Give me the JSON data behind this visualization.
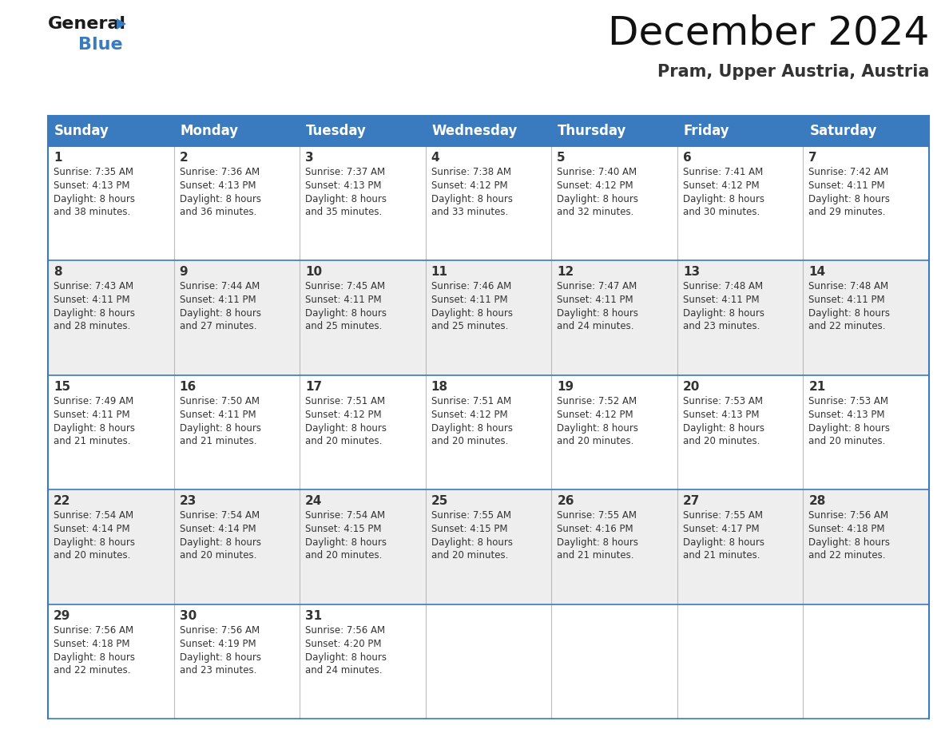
{
  "title": "December 2024",
  "subtitle": "Pram, Upper Austria, Austria",
  "header_color": "#3a7abf",
  "header_text_color": "#ffffff",
  "border_color": "#3a7abf",
  "row_sep_color": "#3a7abf",
  "col_sep_color": "#cccccc",
  "day_headers": [
    "Sunday",
    "Monday",
    "Tuesday",
    "Wednesday",
    "Thursday",
    "Friday",
    "Saturday"
  ],
  "days": [
    {
      "day": 1,
      "col": 0,
      "row": 0,
      "sunrise": "7:35 AM",
      "sunset": "4:13 PM",
      "daylight": "8 hours and 38 minutes."
    },
    {
      "day": 2,
      "col": 1,
      "row": 0,
      "sunrise": "7:36 AM",
      "sunset": "4:13 PM",
      "daylight": "8 hours and 36 minutes."
    },
    {
      "day": 3,
      "col": 2,
      "row": 0,
      "sunrise": "7:37 AM",
      "sunset": "4:13 PM",
      "daylight": "8 hours and 35 minutes."
    },
    {
      "day": 4,
      "col": 3,
      "row": 0,
      "sunrise": "7:38 AM",
      "sunset": "4:12 PM",
      "daylight": "8 hours and 33 minutes."
    },
    {
      "day": 5,
      "col": 4,
      "row": 0,
      "sunrise": "7:40 AM",
      "sunset": "4:12 PM",
      "daylight": "8 hours and 32 minutes."
    },
    {
      "day": 6,
      "col": 5,
      "row": 0,
      "sunrise": "7:41 AM",
      "sunset": "4:12 PM",
      "daylight": "8 hours and 30 minutes."
    },
    {
      "day": 7,
      "col": 6,
      "row": 0,
      "sunrise": "7:42 AM",
      "sunset": "4:11 PM",
      "daylight": "8 hours and 29 minutes."
    },
    {
      "day": 8,
      "col": 0,
      "row": 1,
      "sunrise": "7:43 AM",
      "sunset": "4:11 PM",
      "daylight": "8 hours and 28 minutes."
    },
    {
      "day": 9,
      "col": 1,
      "row": 1,
      "sunrise": "7:44 AM",
      "sunset": "4:11 PM",
      "daylight": "8 hours and 27 minutes."
    },
    {
      "day": 10,
      "col": 2,
      "row": 1,
      "sunrise": "7:45 AM",
      "sunset": "4:11 PM",
      "daylight": "8 hours and 25 minutes."
    },
    {
      "day": 11,
      "col": 3,
      "row": 1,
      "sunrise": "7:46 AM",
      "sunset": "4:11 PM",
      "daylight": "8 hours and 25 minutes."
    },
    {
      "day": 12,
      "col": 4,
      "row": 1,
      "sunrise": "7:47 AM",
      "sunset": "4:11 PM",
      "daylight": "8 hours and 24 minutes."
    },
    {
      "day": 13,
      "col": 5,
      "row": 1,
      "sunrise": "7:48 AM",
      "sunset": "4:11 PM",
      "daylight": "8 hours and 23 minutes."
    },
    {
      "day": 14,
      "col": 6,
      "row": 1,
      "sunrise": "7:48 AM",
      "sunset": "4:11 PM",
      "daylight": "8 hours and 22 minutes."
    },
    {
      "day": 15,
      "col": 0,
      "row": 2,
      "sunrise": "7:49 AM",
      "sunset": "4:11 PM",
      "daylight": "8 hours and 21 minutes."
    },
    {
      "day": 16,
      "col": 1,
      "row": 2,
      "sunrise": "7:50 AM",
      "sunset": "4:11 PM",
      "daylight": "8 hours and 21 minutes."
    },
    {
      "day": 17,
      "col": 2,
      "row": 2,
      "sunrise": "7:51 AM",
      "sunset": "4:12 PM",
      "daylight": "8 hours and 20 minutes."
    },
    {
      "day": 18,
      "col": 3,
      "row": 2,
      "sunrise": "7:51 AM",
      "sunset": "4:12 PM",
      "daylight": "8 hours and 20 minutes."
    },
    {
      "day": 19,
      "col": 4,
      "row": 2,
      "sunrise": "7:52 AM",
      "sunset": "4:12 PM",
      "daylight": "8 hours and 20 minutes."
    },
    {
      "day": 20,
      "col": 5,
      "row": 2,
      "sunrise": "7:53 AM",
      "sunset": "4:13 PM",
      "daylight": "8 hours and 20 minutes."
    },
    {
      "day": 21,
      "col": 6,
      "row": 2,
      "sunrise": "7:53 AM",
      "sunset": "4:13 PM",
      "daylight": "8 hours and 20 minutes."
    },
    {
      "day": 22,
      "col": 0,
      "row": 3,
      "sunrise": "7:54 AM",
      "sunset": "4:14 PM",
      "daylight": "8 hours and 20 minutes."
    },
    {
      "day": 23,
      "col": 1,
      "row": 3,
      "sunrise": "7:54 AM",
      "sunset": "4:14 PM",
      "daylight": "8 hours and 20 minutes."
    },
    {
      "day": 24,
      "col": 2,
      "row": 3,
      "sunrise": "7:54 AM",
      "sunset": "4:15 PM",
      "daylight": "8 hours and 20 minutes."
    },
    {
      "day": 25,
      "col": 3,
      "row": 3,
      "sunrise": "7:55 AM",
      "sunset": "4:15 PM",
      "daylight": "8 hours and 20 minutes."
    },
    {
      "day": 26,
      "col": 4,
      "row": 3,
      "sunrise": "7:55 AM",
      "sunset": "4:16 PM",
      "daylight": "8 hours and 21 minutes."
    },
    {
      "day": 27,
      "col": 5,
      "row": 3,
      "sunrise": "7:55 AM",
      "sunset": "4:17 PM",
      "daylight": "8 hours and 21 minutes."
    },
    {
      "day": 28,
      "col": 6,
      "row": 3,
      "sunrise": "7:56 AM",
      "sunset": "4:18 PM",
      "daylight": "8 hours and 22 minutes."
    },
    {
      "day": 29,
      "col": 0,
      "row": 4,
      "sunrise": "7:56 AM",
      "sunset": "4:18 PM",
      "daylight": "8 hours and 22 minutes."
    },
    {
      "day": 30,
      "col": 1,
      "row": 4,
      "sunrise": "7:56 AM",
      "sunset": "4:19 PM",
      "daylight": "8 hours and 23 minutes."
    },
    {
      "day": 31,
      "col": 2,
      "row": 4,
      "sunrise": "7:56 AM",
      "sunset": "4:20 PM",
      "daylight": "8 hours and 24 minutes."
    }
  ],
  "num_rows": 5,
  "num_cols": 7,
  "logo_text_general": "General",
  "logo_text_blue": "Blue",
  "logo_color_general": "#1a1a1a",
  "logo_color_blue": "#3a7abf",
  "logo_triangle_color": "#3a7abf",
  "title_fontsize": 36,
  "subtitle_fontsize": 15,
  "header_fontsize": 12,
  "day_num_fontsize": 11,
  "cell_text_fontsize": 8.5
}
